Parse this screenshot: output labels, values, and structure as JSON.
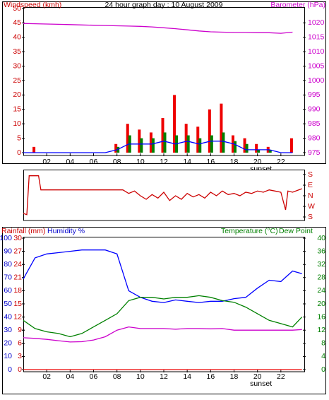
{
  "chart_data": [
    {
      "type": "bar",
      "title": "24 hour graph day : 10 August 2009",
      "ylabel": "Windspeed (kmh)",
      "y2label": "Barometer (hPa)",
      "ycolor": "#cc0000",
      "y2color": "#cc00cc",
      "x": [
        0,
        1,
        2,
        3,
        4,
        5,
        6,
        7,
        8,
        9,
        10,
        11,
        12,
        13,
        14,
        15,
        16,
        17,
        18,
        19,
        20,
        21,
        22,
        23
      ],
      "xlim": [
        0,
        24
      ],
      "xticks": [
        {
          "value": 2,
          "label": "02"
        },
        {
          "value": 4,
          "label": "04"
        },
        {
          "value": 6,
          "label": "06"
        },
        {
          "value": 8,
          "label": "08"
        },
        {
          "value": 10,
          "label": "10"
        },
        {
          "value": 12,
          "label": "12"
        },
        {
          "value": 14,
          "label": "14"
        },
        {
          "value": 16,
          "label": "16"
        },
        {
          "value": 18,
          "label": "18"
        },
        {
          "value": 20,
          "label": "20"
        },
        {
          "value": 22,
          "label": "22"
        }
      ],
      "ylim": [
        0,
        50
      ],
      "yticks": [
        0,
        5,
        10,
        15,
        20,
        25,
        30,
        35,
        40,
        45,
        50
      ],
      "y2lim": [
        975,
        1025
      ],
      "y2ticks": [
        975,
        980,
        985,
        990,
        995,
        1000,
        1005,
        1010,
        1015,
        1020
      ],
      "annotations": [
        {
          "text": "sunset",
          "x": 20.3
        }
      ],
      "series": [
        {
          "type": "bar",
          "color": "#ee0000",
          "values": [
            0,
            2,
            0,
            0,
            0,
            0,
            0,
            0,
            3,
            10,
            8,
            7,
            12,
            20,
            10,
            9,
            15,
            17,
            6,
            5,
            3,
            2,
            0,
            5
          ]
        },
        {
          "type": "bar",
          "color": "#008000",
          "values": [
            0,
            0,
            0,
            0,
            0,
            0,
            0,
            0,
            2,
            6,
            5,
            5,
            7,
            6,
            6,
            5,
            6,
            7,
            4,
            3,
            1,
            1,
            0,
            0
          ]
        },
        {
          "type": "line",
          "color": "#0000ff",
          "values": [
            0,
            0,
            0,
            0,
            0,
            0,
            0,
            0,
            1,
            3,
            3,
            3,
            4,
            3,
            4,
            3,
            4,
            4,
            3,
            1,
            1,
            1,
            0,
            0
          ]
        },
        {
          "type": "line",
          "color": "#cc00cc",
          "axis": "y2",
          "values": [
            1019.8,
            1019.7,
            1019.6,
            1019.5,
            1019.4,
            1019.3,
            1019.2,
            1019.1,
            1019,
            1018.9,
            1018.8,
            1018.6,
            1018.3,
            1018,
            1017.6,
            1017.2,
            1016.9,
            1016.8,
            1016.7,
            1016.7,
            1016.6,
            1016.6,
            1016.4,
            1016.8
          ]
        }
      ]
    },
    {
      "type": "line",
      "y2color": "#cc0000",
      "x": [
        0,
        0.3,
        0.5,
        1.3,
        1.5,
        3,
        5,
        7,
        8.5,
        9,
        9.5,
        10,
        10.5,
        11,
        11.5,
        12,
        12.5,
        13,
        13.5,
        14,
        14.5,
        15,
        15.5,
        16,
        16.5,
        17,
        17.5,
        18,
        18.5,
        19,
        19.5,
        20,
        20.5,
        21,
        21.5,
        22,
        22.4,
        22.6,
        23,
        23.8
      ],
      "xlim": [
        0,
        24
      ],
      "y2lim": [
        -210,
        210
      ],
      "y2ticks": [
        {
          "value": 180,
          "label": "S"
        },
        {
          "value": 90,
          "label": "E"
        },
        {
          "value": 0,
          "label": "N"
        },
        {
          "value": -90,
          "label": "W"
        },
        {
          "value": -180,
          "label": "S"
        }
      ],
      "series": [
        {
          "color": "#cc0000",
          "axis": "y2",
          "values": [
            -150,
            -160,
            170,
            170,
            50,
            50,
            50,
            50,
            50,
            20,
            40,
            0,
            -30,
            10,
            -20,
            30,
            -40,
            0,
            -30,
            20,
            -10,
            10,
            -20,
            30,
            0,
            40,
            10,
            20,
            0,
            30,
            20,
            40,
            30,
            50,
            40,
            30,
            -120,
            40,
            30,
            60
          ]
        }
      ]
    },
    {
      "type": "line",
      "ycolor": "#0000cc",
      "y2color": "#008000",
      "y3color": "#cc0000",
      "x": [
        0,
        1,
        2,
        3,
        4,
        5,
        6,
        7,
        8,
        9,
        10,
        11,
        12,
        13,
        14,
        15,
        16,
        17,
        18,
        19,
        20,
        21,
        22,
        23,
        23.8
      ],
      "xlim": [
        0,
        24
      ],
      "xticks": [
        {
          "value": 2,
          "label": "02"
        },
        {
          "value": 4,
          "label": "04"
        },
        {
          "value": 6,
          "label": "06"
        },
        {
          "value": 8,
          "label": "08"
        },
        {
          "value": 10,
          "label": "10"
        },
        {
          "value": 12,
          "label": "12"
        },
        {
          "value": 14,
          "label": "14"
        },
        {
          "value": 16,
          "label": "16"
        },
        {
          "value": 18,
          "label": "18"
        },
        {
          "value": 20,
          "label": "20"
        },
        {
          "value": 22,
          "label": "22"
        }
      ],
      "ylim": [
        0,
        100
      ],
      "yticks": [
        0,
        10,
        20,
        30,
        40,
        50,
        60,
        70,
        80,
        90,
        100
      ],
      "y2lim": [
        0,
        40
      ],
      "y2ticks": [
        0,
        4,
        8,
        12,
        16,
        20,
        24,
        28,
        32,
        36,
        40
      ],
      "y3lim": [
        0,
        30
      ],
      "y3ticks": [
        0,
        3,
        6,
        9,
        12,
        15,
        18,
        21,
        24,
        27,
        30
      ],
      "annotations": [
        {
          "text": "sunset",
          "x": 20.3
        }
      ],
      "series": [
        {
          "name": "Humidity %",
          "color": "#0000ff",
          "values": [
            69,
            85,
            88,
            89,
            90,
            91,
            91,
            91,
            88,
            60,
            55,
            52,
            51,
            53,
            52,
            51,
            52,
            52,
            54,
            55,
            62,
            68,
            67,
            75,
            73
          ]
        },
        {
          "name": "Rainfall (mm)",
          "color": "#ee0000",
          "axis": "y3",
          "values": [
            0,
            0,
            0,
            0,
            0,
            0,
            0,
            0,
            0,
            0,
            0,
            0,
            0,
            0,
            0,
            0,
            0,
            0,
            0,
            0,
            0,
            0,
            0,
            0,
            0
          ]
        },
        {
          "name": "Temperature (°C)",
          "color": "#008000",
          "axis": "y2",
          "values": [
            15,
            12.5,
            11.5,
            11,
            10,
            11,
            13,
            15,
            17,
            21,
            22,
            22,
            21.5,
            22,
            22,
            22.5,
            22,
            21,
            20.5,
            19,
            17,
            15,
            14,
            13,
            16
          ]
        },
        {
          "name": "Dew Point",
          "color": "#cc00cc",
          "axis": "y2",
          "values": [
            9.7,
            9.5,
            9.2,
            8.8,
            8.4,
            8.5,
            9,
            10,
            12,
            13,
            12.5,
            12.5,
            12.5,
            12.3,
            12.5,
            12.5,
            12.4,
            12.5,
            12,
            12,
            12,
            12,
            12,
            12,
            12.2
          ]
        }
      ]
    }
  ]
}
